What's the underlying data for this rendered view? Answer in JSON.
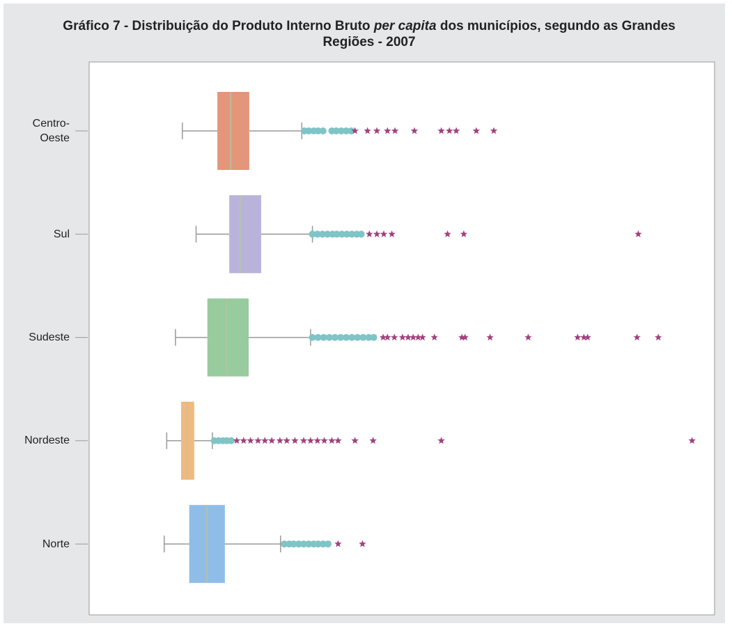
{
  "chart_data": {
    "type": "boxplot",
    "title": [
      "Gráfico 7 - Distribuição do Produto Interno Bruto ",
      "per capita",
      "  dos municípios, segundo as Grandes Regiões - 2007"
    ],
    "xlim": [
      0,
      100
    ],
    "categories": [
      "Centro-\nOeste",
      "Sul",
      "Sudeste",
      "Nordeste",
      "Norte"
    ],
    "boxes": [
      {
        "color": "#e3967a",
        "whislo": 14.9,
        "q1": 20.5,
        "med": 22.6,
        "q3": 25.6,
        "whishi": 34.0,
        "outliers": [
          34.4,
          35.1,
          35.9,
          36.6,
          37.4,
          38.8,
          39.5,
          40.3,
          41.1,
          41.9
        ],
        "extremes": [
          42.5,
          44.5,
          46.0,
          47.7,
          48.9,
          52.0,
          56.3,
          57.6,
          58.7,
          61.9,
          64.7
        ]
      },
      {
        "color": "#b9b3dc",
        "whislo": 17.1,
        "q1": 22.4,
        "med": 24.2,
        "q3": 27.5,
        "whishi": 35.7,
        "outliers": [
          35.7,
          36.5,
          37.3,
          38.1,
          38.9,
          39.6,
          40.4,
          41.2,
          42.0,
          42.8,
          43.5
        ],
        "extremes": [
          44.8,
          46.0,
          47.1,
          48.4,
          57.3,
          59.9,
          87.8
        ]
      },
      {
        "color": "#98cb9d",
        "whislo": 13.8,
        "q1": 18.9,
        "med": 22.0,
        "q3": 25.5,
        "whishi": 35.4,
        "outliers": [
          35.7,
          36.6,
          37.5,
          38.4,
          39.3,
          40.2,
          41.1,
          42.0,
          42.9,
          43.8,
          44.7,
          45.5
        ],
        "extremes": [
          47.0,
          47.7,
          48.8,
          50.1,
          51.0,
          51.8,
          52.6,
          53.3,
          55.2,
          59.6,
          60.1,
          64.1,
          70.2,
          78.1,
          79.1,
          79.7,
          87.6,
          91.0
        ]
      },
      {
        "color": "#f0b97f",
        "whislo": 12.4,
        "q1": 14.7,
        "med": 15.7,
        "q3": 16.8,
        "whishi": 19.7,
        "outliers": [
          20.0,
          20.7,
          21.4,
          22.0,
          22.7
        ],
        "extremes": [
          23.6,
          24.7,
          25.8,
          27.0,
          28.1,
          29.2,
          30.5,
          31.6,
          32.9,
          34.3,
          35.4,
          36.5,
          37.6,
          38.8,
          39.8,
          42.5,
          45.4,
          56.3,
          96.4
        ]
      },
      {
        "color": "#8fbde8",
        "whislo": 12.0,
        "q1": 16.0,
        "med": 18.8,
        "q3": 21.7,
        "whishi": 30.6,
        "outliers": [
          31.2,
          32.0,
          32.7,
          33.5,
          34.3,
          35.1,
          35.9,
          36.6,
          37.4,
          38.2
        ],
        "extremes": [
          39.8,
          43.7
        ]
      }
    ],
    "outlier_color": "#7fc4c6",
    "extreme_color": "#a1407e"
  }
}
